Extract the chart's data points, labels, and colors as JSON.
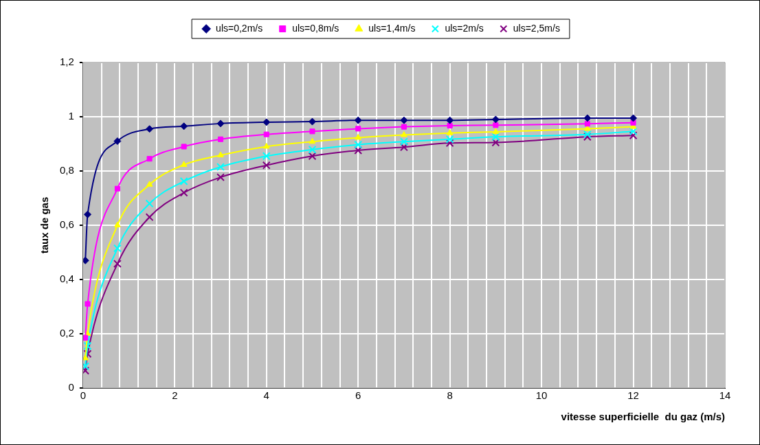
{
  "chart_data": {
    "type": "line",
    "xlabel": "vitesse superficielle  du gaz (m/s)",
    "ylabel": "taux de gas",
    "x": [
      0.05,
      0.1,
      0.75,
      1.45,
      2.2,
      3,
      4,
      5,
      6,
      7,
      8,
      9,
      11,
      12
    ],
    "series": [
      {
        "name": "uls=0,2m/s",
        "color": "#000080",
        "marker": "diamond",
        "values": [
          0.47,
          0.64,
          0.91,
          0.955,
          0.965,
          0.975,
          0.98,
          0.982,
          0.987,
          0.987,
          0.987,
          0.99,
          0.995,
          0.995
        ]
      },
      {
        "name": "uls=0,8m/s",
        "color": "#ff00ff",
        "marker": "square",
        "values": [
          0.185,
          0.31,
          0.735,
          0.845,
          0.89,
          0.917,
          0.935,
          0.946,
          0.956,
          0.963,
          0.967,
          0.969,
          0.974,
          0.978
        ]
      },
      {
        "name": "uls=1,4m/s",
        "color": "#ffff00",
        "marker": "triangle",
        "values": [
          0.11,
          0.2,
          0.6,
          0.75,
          0.823,
          0.858,
          0.89,
          0.908,
          0.923,
          0.933,
          0.94,
          0.944,
          0.956,
          0.963
        ]
      },
      {
        "name": "uls=2m/s",
        "color": "#00ffff",
        "marker": "cross",
        "values": [
          0.08,
          0.155,
          0.515,
          0.68,
          0.762,
          0.815,
          0.855,
          0.879,
          0.897,
          0.908,
          0.917,
          0.926,
          0.935,
          0.946
        ]
      },
      {
        "name": "uls=2,5m/s",
        "color": "#800080",
        "marker": "cross",
        "values": [
          0.064,
          0.126,
          0.458,
          0.63,
          0.72,
          0.777,
          0.821,
          0.855,
          0.876,
          0.888,
          0.903,
          0.905,
          0.926,
          0.931
        ]
      }
    ],
    "xlim": [
      0,
      14
    ],
    "xticks": [
      0,
      {
        "value": 0.4,
        "label": null
      },
      {
        "value": 0.8,
        "label": null
      },
      {
        "value": 1.2,
        "label": null
      },
      {
        "value": 1.6,
        "label": null
      },
      2,
      {
        "value": 2.4,
        "label": null
      },
      {
        "value": 2.8,
        "label": null
      },
      {
        "value": 3.2,
        "label": null
      },
      {
        "value": 3.6,
        "label": null
      },
      4,
      {
        "value": 4.4,
        "label": null
      },
      {
        "value": 4.8,
        "label": null
      },
      {
        "value": 5.2,
        "label": null
      },
      {
        "value": 5.6,
        "label": null
      },
      6,
      {
        "value": 6.4,
        "label": null
      },
      {
        "value": 6.8,
        "label": null
      },
      {
        "value": 7.2,
        "label": null
      },
      {
        "value": 7.6,
        "label": null
      },
      8,
      {
        "value": 8.4,
        "label": null
      },
      {
        "value": 8.8,
        "label": null
      },
      {
        "value": 9.2,
        "label": null
      },
      {
        "value": 9.6,
        "label": null
      },
      10,
      {
        "value": 10.4,
        "label": null
      },
      {
        "value": 10.8,
        "label": null
      },
      {
        "value": 11.2,
        "label": null
      },
      {
        "value": 11.6,
        "label": null
      },
      12,
      {
        "value": 12.4,
        "label": null
      },
      {
        "value": 12.8,
        "label": null
      },
      {
        "value": 13.2,
        "label": null
      },
      {
        "value": 13.6,
        "label": null
      },
      14
    ],
    "ylim": [
      0,
      1.2
    ],
    "yticks": [
      0,
      {
        "value": 0.2,
        "label": "0,2"
      },
      {
        "value": 0.4,
        "label": "0,4"
      },
      {
        "value": 0.6,
        "label": "0,6"
      },
      {
        "value": 0.8,
        "label": "0,8"
      },
      1,
      {
        "value": 1.2,
        "label": "1,2"
      }
    ],
    "grid": true,
    "legend": "top"
  }
}
